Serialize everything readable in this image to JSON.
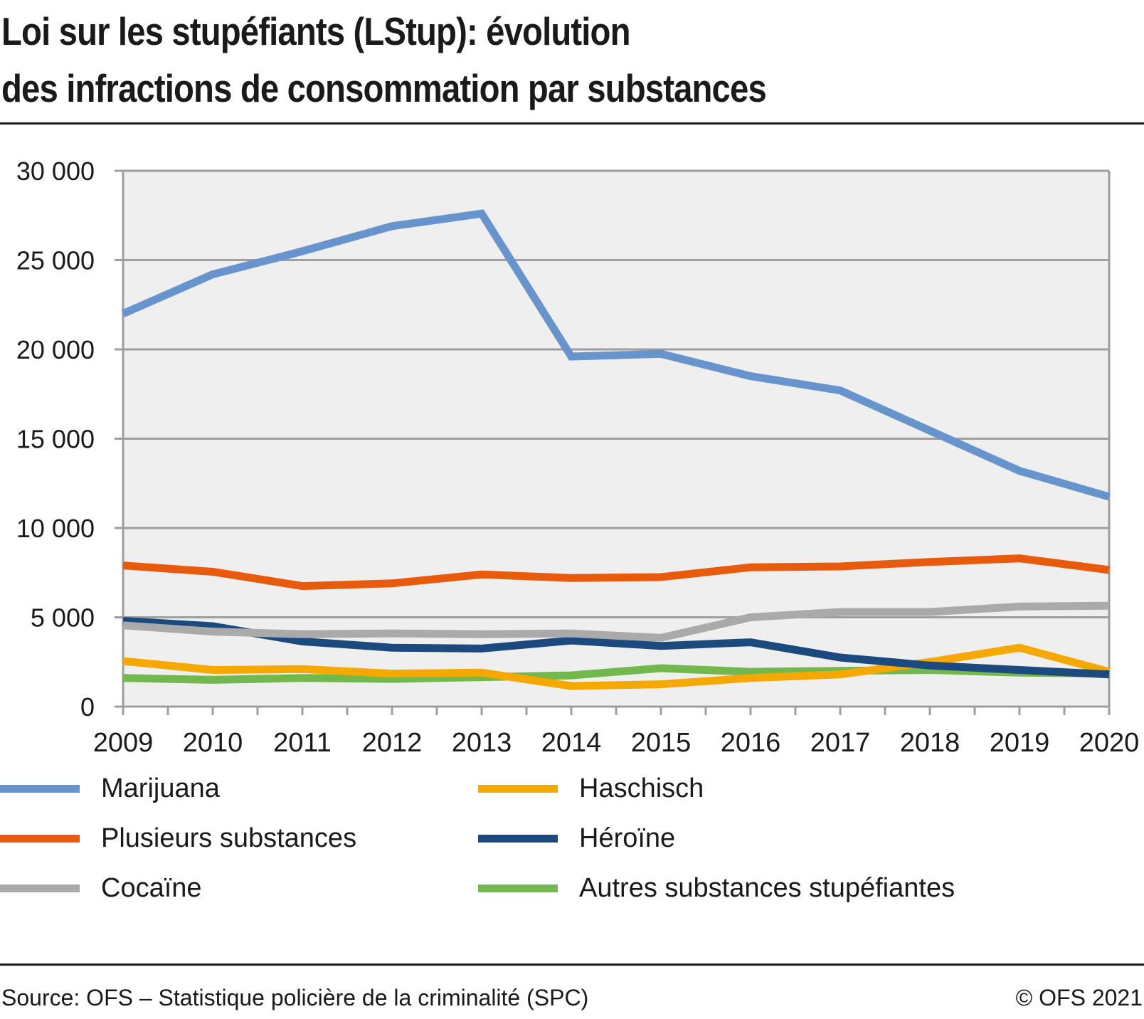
{
  "title_line1": "Loi sur les stupéfiants (LStup): évolution",
  "title_line2": "des infractions de consommation par substances",
  "footer": {
    "source": "Source: OFS – Statistique policière de la criminalité (SPC)",
    "copyright": "© OFS 2021"
  },
  "chart_data": {
    "type": "line",
    "title": "Loi sur les stupéfiants (LStup): évolution des infractions de consommation par substances",
    "xlabel": "",
    "ylabel": "",
    "x": [
      "2009",
      "2010",
      "2011",
      "2012",
      "2013",
      "2014",
      "2015",
      "2016",
      "2017",
      "2018",
      "2019",
      "2020"
    ],
    "ylim": [
      0,
      30000
    ],
    "yticks": [
      0,
      5000,
      10000,
      15000,
      20000,
      25000,
      30000
    ],
    "ytick_labels": [
      "0",
      "5 000",
      "10 000",
      "15 000",
      "20 000",
      "25 000",
      "30 000"
    ],
    "grid": true,
    "legend_position": "bottom",
    "background": "#efefef",
    "series": [
      {
        "name": "Marijuana",
        "color": "#6794cc",
        "values": [
          22000,
          24200,
          25500,
          26900,
          27600,
          19600,
          19750,
          18500,
          17700,
          15450,
          13200,
          11750
        ]
      },
      {
        "name": "Plusieurs substances",
        "color": "#e85a0c",
        "values": [
          7900,
          7550,
          6750,
          6900,
          7400,
          7200,
          7250,
          7800,
          7850,
          8100,
          8300,
          7650
        ]
      },
      {
        "name": "Cocaïne",
        "color": "#aaaaaa",
        "values": [
          4550,
          4200,
          4050,
          4100,
          4050,
          4100,
          3850,
          5000,
          5300,
          5300,
          5600,
          5650
        ]
      },
      {
        "name": "Haschisch",
        "color": "#f5a800",
        "values": [
          2550,
          2050,
          2100,
          1850,
          1900,
          1150,
          1250,
          1600,
          1800,
          2500,
          3300,
          1950
        ]
      },
      {
        "name": "Héroïne",
        "color": "#1c4a7e",
        "values": [
          4800,
          4500,
          3650,
          3300,
          3250,
          3700,
          3400,
          3600,
          2750,
          2300,
          2050,
          1800
        ]
      },
      {
        "name": "Autres substances stupéfiantes",
        "color": "#72b84c",
        "values": [
          1600,
          1500,
          1600,
          1550,
          1650,
          1750,
          2150,
          1950,
          2000,
          2050,
          1900,
          1850
        ]
      }
    ],
    "legend_order": [
      0,
      3,
      1,
      4,
      2,
      5
    ]
  }
}
